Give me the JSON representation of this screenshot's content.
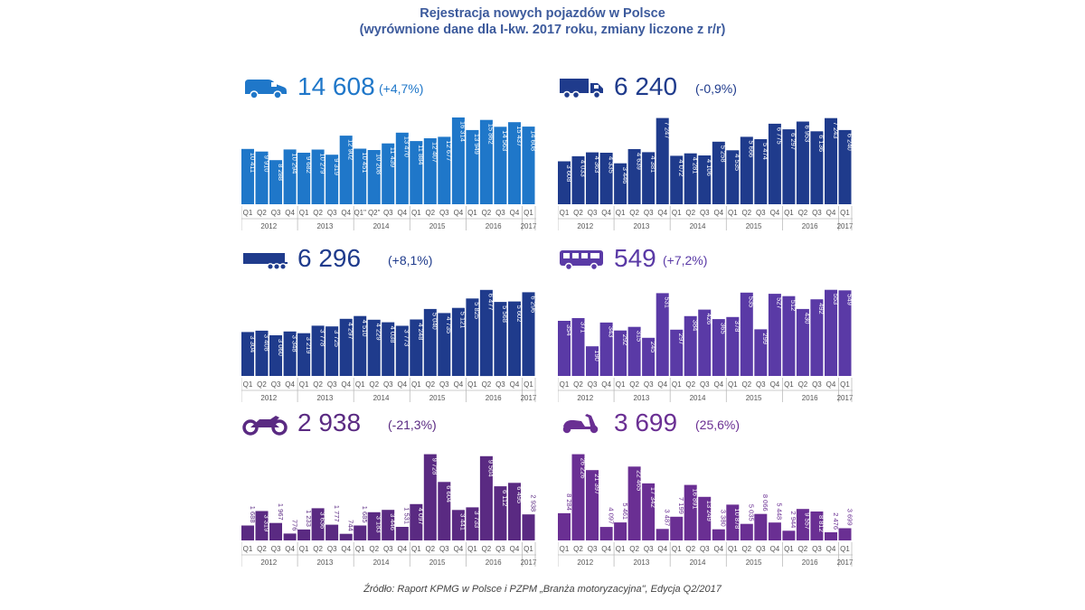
{
  "title_line1": "Rejestracja nowych pojazdów w Polsce",
  "title_line2": "(wyrównione dane dla I-kw. 2017 roku, zmiany liczone z r/r)",
  "source": "Źródło: Raport KPMG w Polsce i PZPM „Branża motoryzacyjna\", Edycja Q2/2017",
  "colors": {
    "title": "#3c5a9c",
    "cars": "#1f77c9",
    "trucks": "#1f3b8c",
    "trailers": "#1f3b8c",
    "buses": "#5a3aa6",
    "motorcycles": "#5a2a82",
    "scooters": "#6a2f93"
  },
  "chart_data": [
    {
      "type": "bar",
      "id": "cars",
      "icon": "van-icon",
      "headline_value": "14 608",
      "headline_change": "(+4,7%)",
      "categories": [
        "Q1",
        "Q2",
        "Q3",
        "Q4",
        "Q1",
        "Q2",
        "Q3",
        "Q4",
        "Q1",
        "Q2",
        "Q3",
        "Q4",
        "Q1",
        "Q2",
        "Q3",
        "Q4",
        "Q1",
        "Q2",
        "Q3",
        "Q4",
        "Q1"
      ],
      "category_labels": [
        "Q1",
        "Q2",
        "Q3",
        "Q4",
        "Q1",
        "Q2",
        "Q3",
        "Q4",
        "Q1\"",
        "Q2\"",
        "Q3",
        "Q4",
        "Q1",
        "Q2",
        "Q3",
        "Q4",
        "Q1",
        "Q2",
        "Q3",
        "Q4",
        "Q1"
      ],
      "years": [
        "2012",
        "2013",
        "2014",
        "2015",
        "2016",
        "2017"
      ],
      "values": [
        10411,
        9910,
        8288,
        10294,
        9682,
        10279,
        9319,
        12902,
        10451,
        10208,
        11439,
        13470,
        11884,
        12407,
        12677,
        16314,
        13949,
        15862,
        14563,
        15437,
        14608
      ],
      "value_labels": [
        "10 411",
        "9 910",
        "8 288",
        "10 294",
        "9 682",
        "10 279",
        "9 319",
        "12 902",
        "10 451",
        "10 208",
        "11 439",
        "13 470",
        "11 884",
        "12 407",
        "12 677",
        "16 314",
        "13 949",
        "15 862",
        "14 563",
        "15 437",
        "14 608"
      ],
      "ylim": [
        0,
        17000
      ]
    },
    {
      "type": "bar",
      "id": "trucks",
      "icon": "truck-icon",
      "headline_value": "6 240",
      "headline_change": "(-0,9%)",
      "categories": [
        "Q1",
        "Q2",
        "Q3",
        "Q4",
        "Q1",
        "Q2",
        "Q3",
        "Q4",
        "Q1",
        "Q2",
        "Q3",
        "Q4",
        "Q1",
        "Q2",
        "Q3",
        "Q4",
        "Q1",
        "Q2",
        "Q3",
        "Q4",
        "Q1"
      ],
      "category_labels": [
        "Q1",
        "Q2",
        "Q3",
        "Q4",
        "Q1",
        "Q2",
        "Q3",
        "Q4",
        "Q1",
        "Q2",
        "Q3",
        "Q4",
        "Q1",
        "Q2",
        "Q3",
        "Q4",
        "Q1",
        "Q2",
        "Q3",
        "Q4",
        "Q1"
      ],
      "years": [
        "2012",
        "2013",
        "2014",
        "2015",
        "2016",
        "2017"
      ],
      "values": [
        3608,
        4033,
        4363,
        4335,
        3446,
        4639,
        4381,
        7247,
        4072,
        4281,
        4106,
        5258,
        4535,
        5666,
        5474,
        6775,
        6297,
        6953,
        6136,
        7243,
        6240
      ],
      "value_labels": [
        "3 608",
        "4 033",
        "4 363",
        "4 335",
        "3 446",
        "4 639",
        "4 381",
        "7 247",
        "4 072",
        "4 281",
        "4 106",
        "5 258",
        "4 535",
        "5 666",
        "5 474",
        "6 775",
        "6 297",
        "6 953",
        "6 136",
        "7 243",
        "6 240"
      ],
      "ylim": [
        0,
        7600
      ]
    },
    {
      "type": "bar",
      "id": "trailers",
      "icon": "trailer-icon",
      "headline_value": "6 296",
      "headline_change": "(+8,1%)",
      "categories": [
        "Q1",
        "Q2",
        "Q3",
        "Q4",
        "Q1",
        "Q2",
        "Q3",
        "Q4",
        "Q1",
        "Q2",
        "Q3",
        "Q4",
        "Q1",
        "Q2",
        "Q3",
        "Q4",
        "Q1",
        "Q2",
        "Q3",
        "Q4",
        "Q1"
      ],
      "category_labels": [
        "Q1",
        "Q2",
        "Q3",
        "Q4",
        "Q1",
        "Q2",
        "Q3",
        "Q4",
        "Q1",
        "Q2",
        "Q3",
        "Q4",
        "Q1",
        "Q2",
        "Q3",
        "Q4",
        "Q1",
        "Q2",
        "Q3",
        "Q4",
        "Q1"
      ],
      "years": [
        "2012",
        "2013",
        "2014",
        "2015",
        "2016",
        "2017"
      ],
      "values": [
        3304,
        3408,
        3060,
        3348,
        3219,
        3778,
        3725,
        4297,
        4510,
        4229,
        4038,
        3773,
        4248,
        5040,
        4735,
        5121,
        5825,
        6477,
        5568,
        5602,
        6296
      ],
      "value_labels": [
        "3 304",
        "3 408",
        "3 060",
        "3 348",
        "3 219",
        "3 778",
        "3 725",
        "4 297",
        "4 510",
        "4 229",
        "4 038",
        "3 773",
        "4 248",
        "5 040",
        "4 735",
        "5 121",
        "5 825",
        "6 477",
        "5 568",
        "5 602",
        "6 296"
      ],
      "ylim": [
        0,
        6800
      ]
    },
    {
      "type": "bar",
      "id": "buses",
      "icon": "bus-icon",
      "headline_value": "549",
      "headline_change": "(+7,2%)",
      "categories": [
        "Q1",
        "Q2",
        "Q3",
        "Q4",
        "Q1",
        "Q2",
        "Q3",
        "Q4",
        "Q1",
        "Q2",
        "Q3",
        "Q4",
        "Q1",
        "Q2",
        "Q3",
        "Q4",
        "Q1",
        "Q2",
        "Q3",
        "Q4",
        "Q1"
      ],
      "category_labels": [
        "Q1",
        "Q2",
        "Q3",
        "Q4",
        "Q1",
        "Q2",
        "Q3",
        "Q4",
        "Q1",
        "Q2",
        "Q3",
        "Q4",
        "Q1",
        "Q2",
        "Q3",
        "Q4",
        "Q1",
        "Q2",
        "Q3",
        "Q4",
        "Q1"
      ],
      "years": [
        "2012",
        "2013",
        "2014",
        "2015",
        "2016",
        "2017"
      ],
      "values": [
        354,
        371,
        190,
        343,
        292,
        315,
        245,
        531,
        297,
        384,
        426,
        365,
        378,
        535,
        299,
        527,
        512,
        430,
        492,
        553,
        549
      ],
      "value_labels": [
        "354",
        "371",
        "190",
        "343",
        "292",
        "315",
        "245",
        "531",
        "297",
        "384",
        "426",
        "365",
        "378",
        "535",
        "299",
        "527",
        "512",
        "430",
        "492",
        "553",
        "549"
      ],
      "ylim": [
        0,
        580
      ]
    },
    {
      "type": "bar",
      "id": "motorcycles",
      "icon": "motorcycle-icon",
      "headline_value": "2 938",
      "headline_change": "(-21,3%)",
      "categories": [
        "Q1",
        "Q2",
        "Q3",
        "Q4",
        "Q1",
        "Q2",
        "Q3",
        "Q4",
        "Q1",
        "Q2",
        "Q3",
        "Q4",
        "Q1",
        "Q2",
        "Q3",
        "Q4",
        "Q1",
        "Q2",
        "Q3",
        "Q4",
        "Q1"
      ],
      "category_labels": [
        "Q1",
        "Q2",
        "Q3",
        "Q4",
        "Q1",
        "Q2",
        "Q3",
        "Q4",
        "Q1",
        "Q2",
        "Q3",
        "Q4",
        "Q1",
        "Q2",
        "Q3",
        "Q4",
        "Q1",
        "Q2",
        "Q3",
        "Q4",
        "Q1"
      ],
      "years": [
        "2012",
        "2013",
        "2014",
        "2015",
        "2016",
        "2017"
      ],
      "values": [
        1688,
        3319,
        1967,
        776,
        1233,
        3636,
        1777,
        744,
        1685,
        3183,
        3446,
        1531,
        4097,
        9728,
        6604,
        3441,
        3733,
        9504,
        6112,
        6495,
        2938
      ],
      "value_labels": [
        "1 688",
        "3 319",
        "1 967",
        "776",
        "1 233",
        "3 636",
        "1 777",
        "744",
        "1 685",
        "3 183",
        "3 446",
        "1 531",
        "4 097",
        "9 728",
        "6 604",
        "3 441",
        "3 733",
        "9 504",
        "6 112",
        "6 495",
        "2 938"
      ],
      "ylim": [
        0,
        10200
      ]
    },
    {
      "type": "bar",
      "id": "scooters",
      "icon": "scooter-icon",
      "headline_value": "3 699",
      "headline_change": "(25,6%)",
      "categories": [
        "Q1",
        "Q2",
        "Q3",
        "Q4",
        "Q1",
        "Q2",
        "Q3",
        "Q4",
        "Q1",
        "Q2",
        "Q3",
        "Q4",
        "Q1",
        "Q2",
        "Q3",
        "Q4",
        "Q1",
        "Q2",
        "Q3",
        "Q4",
        "Q1"
      ],
      "category_labels": [
        "Q1",
        "Q2",
        "Q3",
        "Q4",
        "Q1",
        "Q2",
        "Q3",
        "Q4",
        "Q1",
        "Q2",
        "Q3",
        "Q4",
        "Q1",
        "Q2",
        "Q3",
        "Q4",
        "Q1",
        "Q2",
        "Q3",
        "Q4",
        "Q1"
      ],
      "years": [
        "2012",
        "2013",
        "2014",
        "2015",
        "2016",
        "2017"
      ],
      "values": [
        8284,
        26226,
        21397,
        4097,
        5461,
        22465,
        17342,
        3487,
        7199,
        16891,
        13249,
        3380,
        10878,
        5035,
        8066,
        5448,
        2944,
        9557,
        8812,
        2476,
        3699
      ],
      "value_labels": [
        "8 284",
        "26 226",
        "21 397",
        "4 097",
        "5 461",
        "22 465",
        "17 342",
        "3 487",
        "7 199",
        "16 891",
        "13 249",
        "3 380",
        "10 878",
        "5 035",
        "8 066",
        "5 448",
        "2 944",
        "9 557",
        "8 812",
        "2 476",
        "3 699"
      ],
      "ylim": [
        0,
        27500
      ]
    }
  ]
}
